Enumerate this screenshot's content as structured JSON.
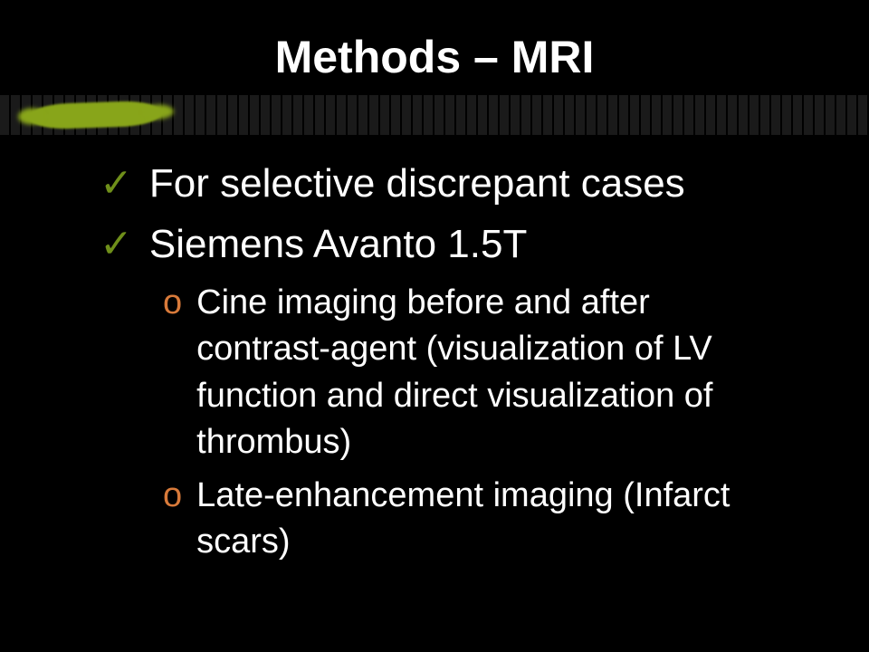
{
  "slide": {
    "title": "Methods – MRI",
    "title_color": "#ffffff",
    "title_fontsize": 50,
    "background_color": "#000000",
    "accent_brush_color": "#88a51a",
    "bar_color": "#1a1a1a",
    "check_color": "#6f8f1a",
    "o_color": "#d87a3a",
    "body_fontsize_main": 44,
    "body_fontsize_sub": 38,
    "bullets": {
      "b1": {
        "mark": "✓",
        "text": "For selective discrepant cases"
      },
      "b2": {
        "mark": "✓",
        "text": "Siemens Avanto 1.5T"
      },
      "sub1": {
        "mark": "o",
        "text": "Cine imaging before and after contrast-agent (visualization of LV function and direct visualization of thrombus)"
      },
      "sub2": {
        "mark": "o",
        "text": "Late-enhancement imaging (Infarct scars)"
      }
    }
  }
}
